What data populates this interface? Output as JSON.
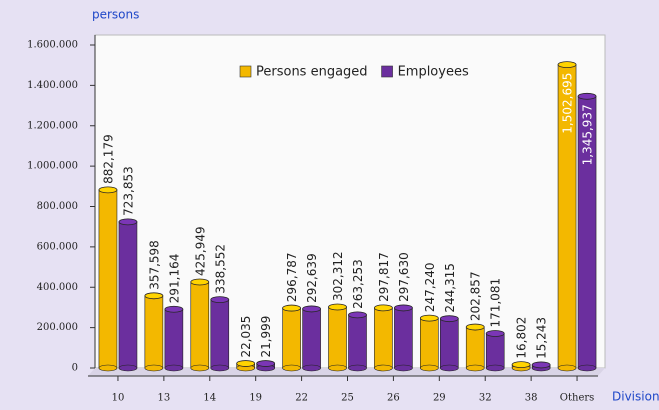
{
  "chart_data": {
    "type": "bar",
    "y_label": "persons",
    "x_label": "Division",
    "categories": [
      "10",
      "13",
      "14",
      "19",
      "22",
      "25",
      "26",
      "29",
      "32",
      "38",
      "Others"
    ],
    "series": [
      {
        "name": "Persons engaged",
        "color": "#f3b800",
        "values": [
          882179,
          357598,
          425949,
          22035,
          296787,
          302312,
          297817,
          247240,
          202857,
          16802,
          1502695
        ],
        "value_labels": [
          "882,179",
          "357,598",
          "425,949",
          "22,035",
          "296,787",
          "302,312",
          "297,817",
          "247,240",
          "202,857",
          "16,802",
          "1,502,695"
        ]
      },
      {
        "name": "Employees",
        "color": "#6b2f9e",
        "values": [
          723853,
          291164,
          338552,
          21999,
          292639,
          263253,
          297630,
          244315,
          171081,
          15243,
          1345937
        ],
        "value_labels": [
          "723,853",
          "291,164",
          "338,552",
          "21,999",
          "292,639",
          "263,253",
          "297,630",
          "244,315",
          "171,081",
          "15,243",
          "1,345,937"
        ]
      }
    ],
    "ylim": [
      0,
      1600000
    ],
    "yticks": [
      0,
      {
        "value": 200000,
        "label": "200.000"
      },
      {
        "value": 400000,
        "label": "400.000"
      },
      {
        "value": 600000,
        "label": "600.000"
      },
      {
        "value": 800000,
        "label": "800.000"
      },
      {
        "value": 1000000,
        "label": "1.000.000"
      },
      {
        "value": 1200000,
        "label": "1.200.000"
      },
      {
        "value": 1400000,
        "label": "1.400.000"
      },
      {
        "value": 1600000,
        "label": "1.600.000"
      }
    ],
    "legend": "upper right"
  }
}
